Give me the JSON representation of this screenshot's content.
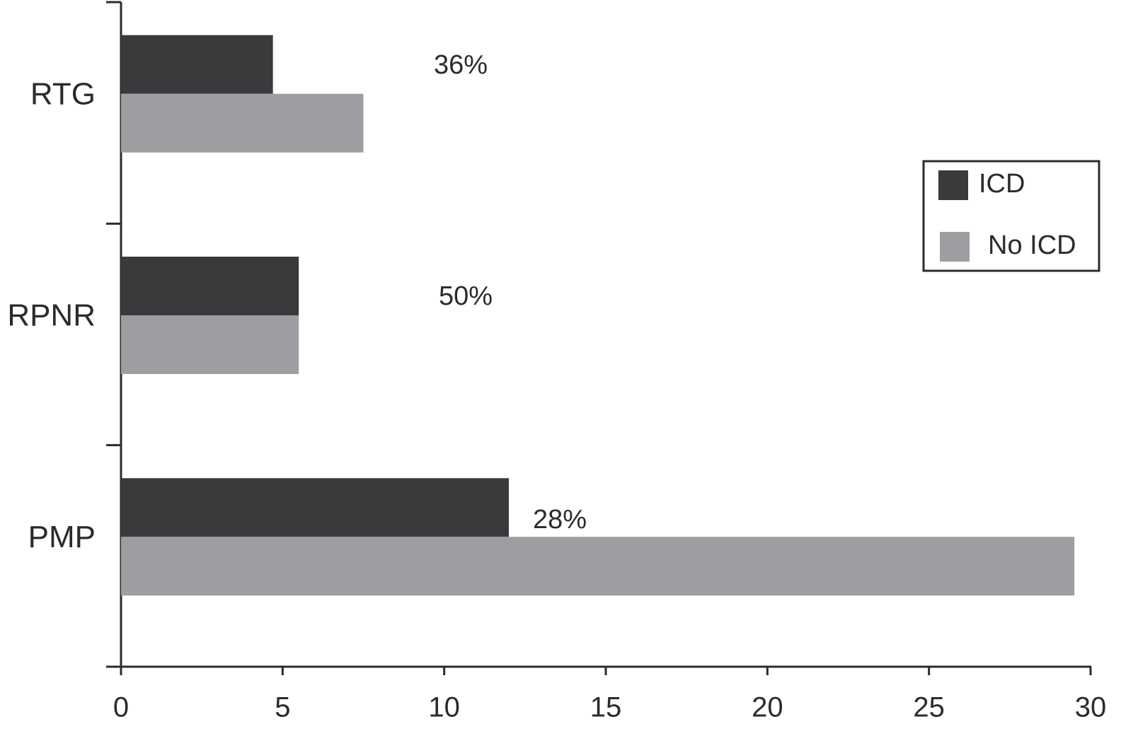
{
  "chart_data": {
    "type": "hbar",
    "categories": [
      "RTG",
      "RPNR",
      "PMP"
    ],
    "series": [
      {
        "name": "ICD",
        "color": "#3a3a3c",
        "values": [
          4.7,
          5.5,
          12
        ]
      },
      {
        "name": "No ICD",
        "color": "#9d9ea1",
        "values": [
          7.5,
          5.5,
          29.5
        ]
      }
    ],
    "annotations": [
      "36%",
      "50%",
      "28%"
    ],
    "xlim": [
      0,
      30
    ],
    "xticks": [
      0,
      5,
      10,
      15,
      20,
      25,
      30
    ],
    "legend": "right"
  }
}
